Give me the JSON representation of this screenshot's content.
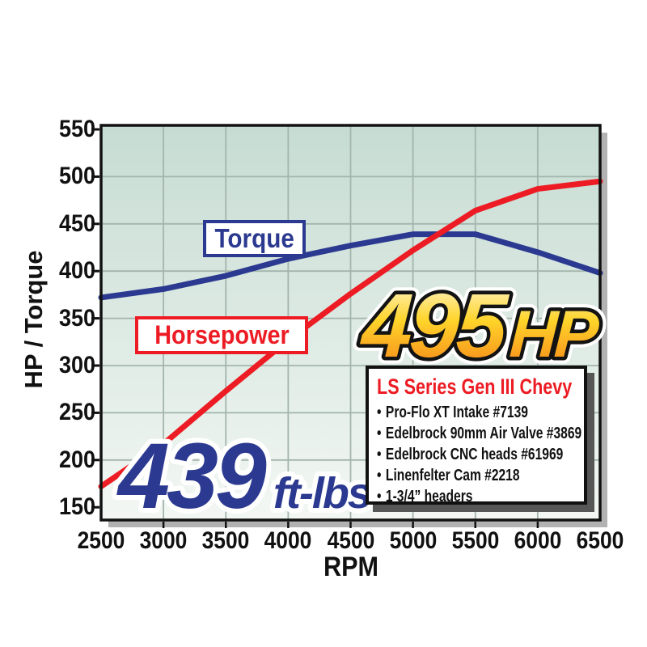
{
  "chart_data": {
    "type": "line",
    "title": "",
    "xlabel": "RPM",
    "ylabel": "HP / Torque",
    "x": [
      2500,
      3000,
      3500,
      4000,
      4500,
      5000,
      5500,
      6000,
      6500
    ],
    "xticks": [
      2500,
      3000,
      3500,
      4000,
      4500,
      5000,
      5500,
      6000,
      6500
    ],
    "yticks": [
      150,
      200,
      250,
      300,
      350,
      400,
      450,
      500,
      550
    ],
    "ylim": [
      150,
      550
    ],
    "xlim": [
      2500,
      6500
    ],
    "grid": true,
    "legend_position": "on-chart-boxes",
    "series": [
      {
        "name": "Torque",
        "color": "#2b3990",
        "values": [
          372,
          381,
          395,
          413,
          427,
          439,
          439,
          420,
          398
        ]
      },
      {
        "name": "Horsepower",
        "color": "#ed1c24",
        "values": [
          172,
          217,
          273,
          327,
          376,
          422,
          464,
          487,
          495
        ]
      }
    ],
    "peak_horsepower": 495,
    "peak_torque": 439
  },
  "labels": {
    "torque_box": "Torque",
    "horsepower_box": "Horsepower",
    "hp_value": "495",
    "hp_unit": "HP",
    "tq_value": "439",
    "tq_unit": "ft-lbs"
  },
  "spec_box": {
    "bullet": "•",
    "title": "LS Series Gen III Chevy",
    "items": [
      "Pro-Flo XT Intake #7139",
      "Edelbrock 90mm Air Valve #3869",
      "Edelbrock CNC heads #61969",
      "Linenfelter Cam #2218",
      "1-3/4” headers"
    ]
  },
  "colors": {
    "torque_line": "#2b3990",
    "horsepower_line": "#ed1c24",
    "plot_bg_top": "#c6dcd2",
    "plot_bg_bottom": "#f3f7f4",
    "gridline": "#a3b5ac",
    "plot_border": "#111111",
    "plot_shadow": "#b2b2b2",
    "hp_text_gradient_top": "#fff9e0",
    "hp_text_gradient_mid": "#ffd42a",
    "hp_text_gradient_bottom": "#f57f17"
  }
}
